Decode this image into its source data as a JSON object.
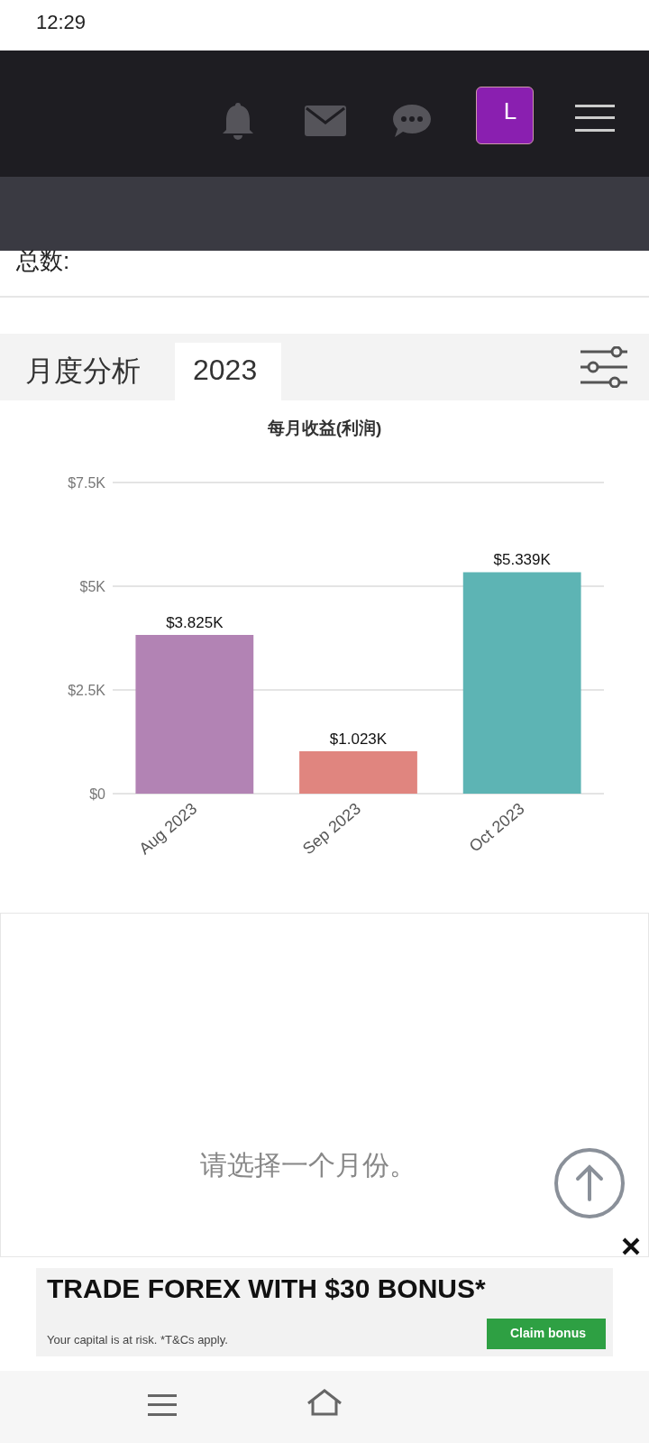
{
  "chart_data": {
    "type": "bar",
    "title": "每月收益(利润)",
    "categories": [
      "Aug 2023",
      "Sep 2023",
      "Oct 2023"
    ],
    "values": [
      3.825,
      1.023,
      5.339
    ],
    "colors": [
      "#b283b4",
      "#e0857f",
      "#5db4b4"
    ],
    "value_labels": [
      "$3.825K",
      "$1.023K",
      "$5.339K"
    ],
    "ylim": [
      0,
      7.5
    ],
    "yticks": [
      {
        "value": 0,
        "label": "$0"
      },
      {
        "value": 2.5,
        "label": "$2.5K"
      },
      {
        "value": 5,
        "label": "$5K"
      },
      {
        "value": 7.5,
        "label": "$7.5K"
      }
    ],
    "grid": "y",
    "annotations": [
      "12:29",
      "L",
      "总数:",
      "月度分析",
      "2023",
      "请选择一个月份。",
      "TRADE FOREX WITH $30 BONUS*",
      "Your capital is at risk. *T&Cs apply.",
      "Claim bonus"
    ]
  }
}
